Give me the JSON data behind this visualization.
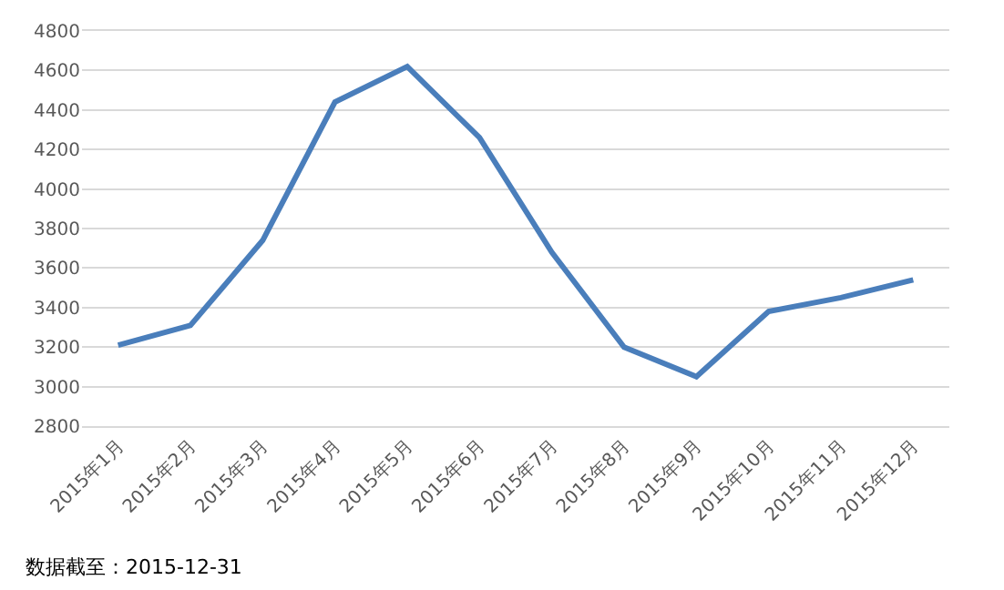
{
  "chart_data": {
    "type": "line",
    "categories": [
      "2015年1月",
      "2015年2月",
      "2015年3月",
      "2015年4月",
      "2015年5月",
      "2015年6月",
      "2015年7月",
      "2015年8月",
      "2015年9月",
      "2015年10月",
      "2015年11月",
      "2015年12月"
    ],
    "series": [
      {
        "color": "#4a7ebb",
        "values": [
          3210,
          3310,
          3740,
          4440,
          4620,
          4260,
          3680,
          3200,
          3050,
          3380,
          3450,
          3540
        ]
      }
    ],
    "ylim": [
      2800,
      4800
    ],
    "yticks": [
      2800,
      3000,
      3200,
      3400,
      3600,
      3800,
      4000,
      4200,
      4400,
      4600,
      4800
    ],
    "grid": "y",
    "marker": "none",
    "line_style": "solid",
    "annotations": [
      "数据截至：2015-12-31"
    ]
  }
}
